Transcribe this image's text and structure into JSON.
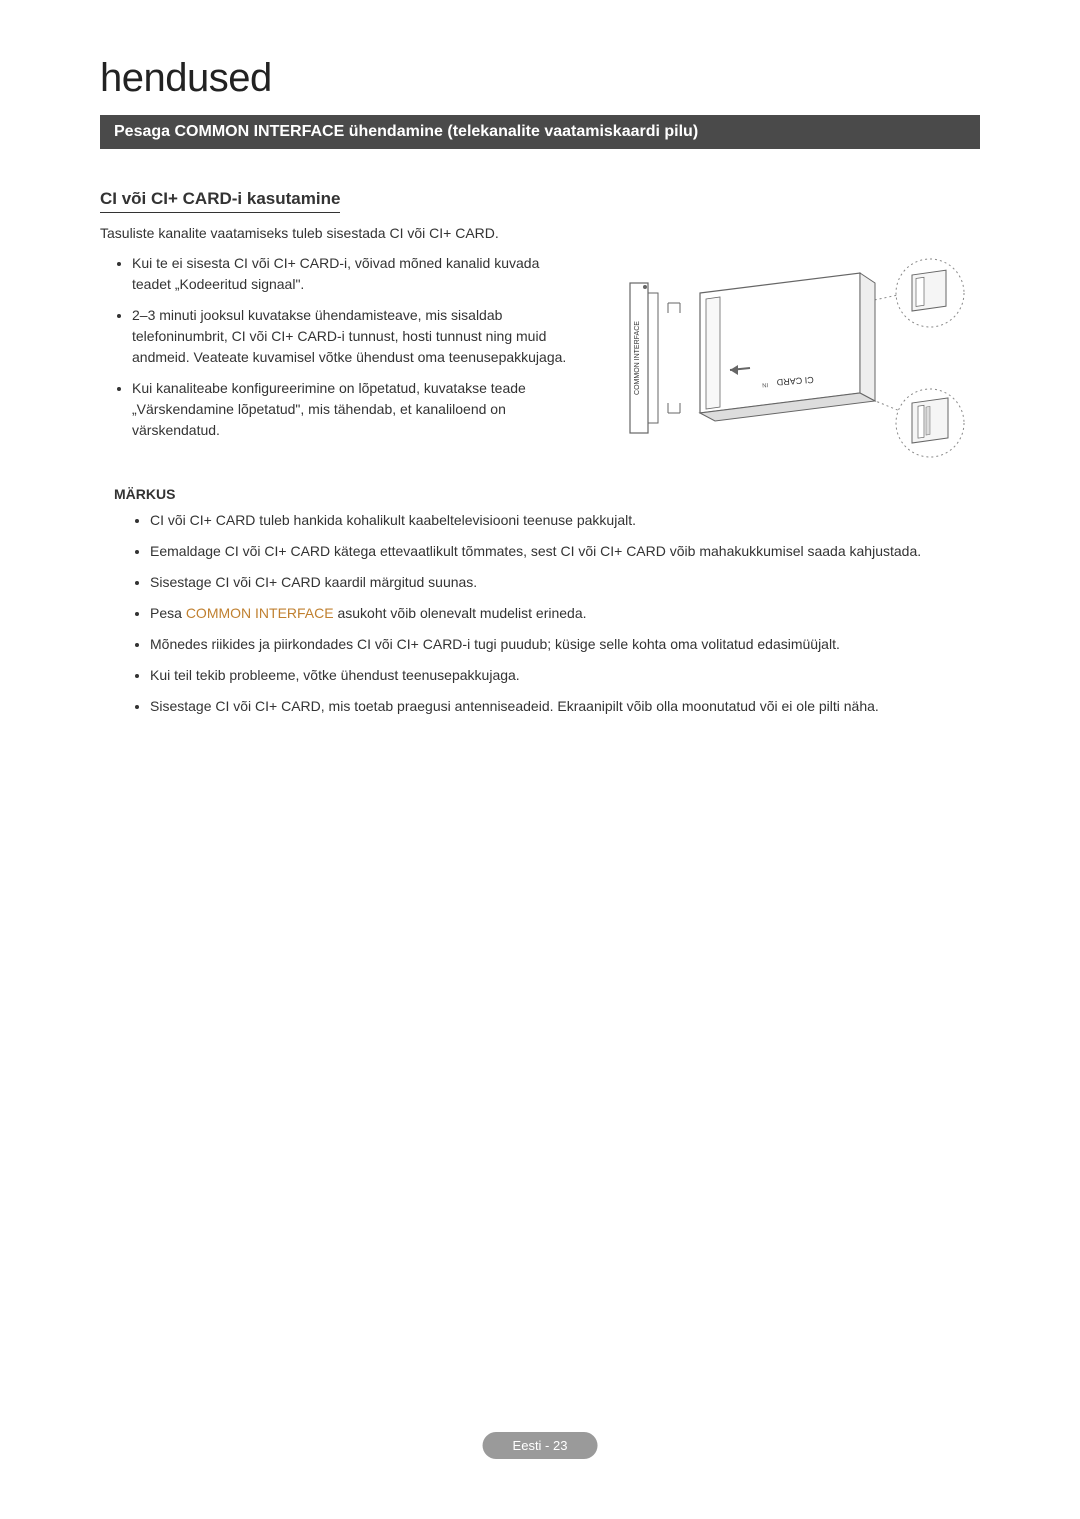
{
  "header": {
    "title": "hendused",
    "banner": "Pesaga COMMON INTERFACE ühendamine (telekanalite vaatamiskaardi pilu)"
  },
  "section": {
    "subheading": "CI või CI+ CARD-i kasutamine",
    "intro": "Tasuliste kanalite vaatamiseks tuleb sisestada CI või CI+ CARD.",
    "bullets": [
      "Kui te ei sisesta CI või CI+ CARD-i, võivad mõned kanalid kuvada teadet „Kodeeritud signaal\".",
      "2–3 minuti jooksul kuvatakse ühendamisteave, mis sisaldab telefoninumbrit, CI või CI+ CARD-i tunnust, hosti tunnust ning muid andmeid. Veateate kuvamisel võtke ühendust oma teenusepakkujaga.",
      "Kui kanaliteabe konfigureerimine on lõpetatud, kuvatakse teade „Värskendamine lõpetatud\", mis tähendab, et kanaliloend on värskendatud."
    ]
  },
  "notes": {
    "label": "MÄRKUS",
    "items": [
      "CI või CI+ CARD tuleb hankida kohalikult kaabeltelevisiooni teenuse pakkujalt.",
      "Eemaldage CI või CI+ CARD kätega ettevaatlikult tõmmates, sest CI või CI+ CARD võib mahakukkumisel saada kahjustada.",
      "Sisestage CI või CI+ CARD kaardil märgitud suunas.",
      "Pesa <span class=\"highlight\">COMMON INTERFACE</span> asukoht võib olenevalt mudelist erineda.",
      "Mõnedes riikides ja piirkondades CI või CI+ CARD-i tugi puudub; küsige selle kohta oma volitatud edasimüüjalt.",
      "Kui teil tekib probleeme, võtke ühendust teenusepakkujaga.",
      "Sisestage CI või CI+ CARD, mis toetab praegusi antenniseadeid. Ekraanipilt võib olla moonutatud või ei ole pilti näha."
    ]
  },
  "diagram": {
    "slot_label": "COMMON INTERFACE",
    "card_label": "CI CARD",
    "stroke": "#666666",
    "dotted_stroke": "#888888",
    "fill": "#ffffff",
    "light_fill": "#f5f5f5"
  },
  "footer": {
    "text": "Eesti - 23"
  }
}
